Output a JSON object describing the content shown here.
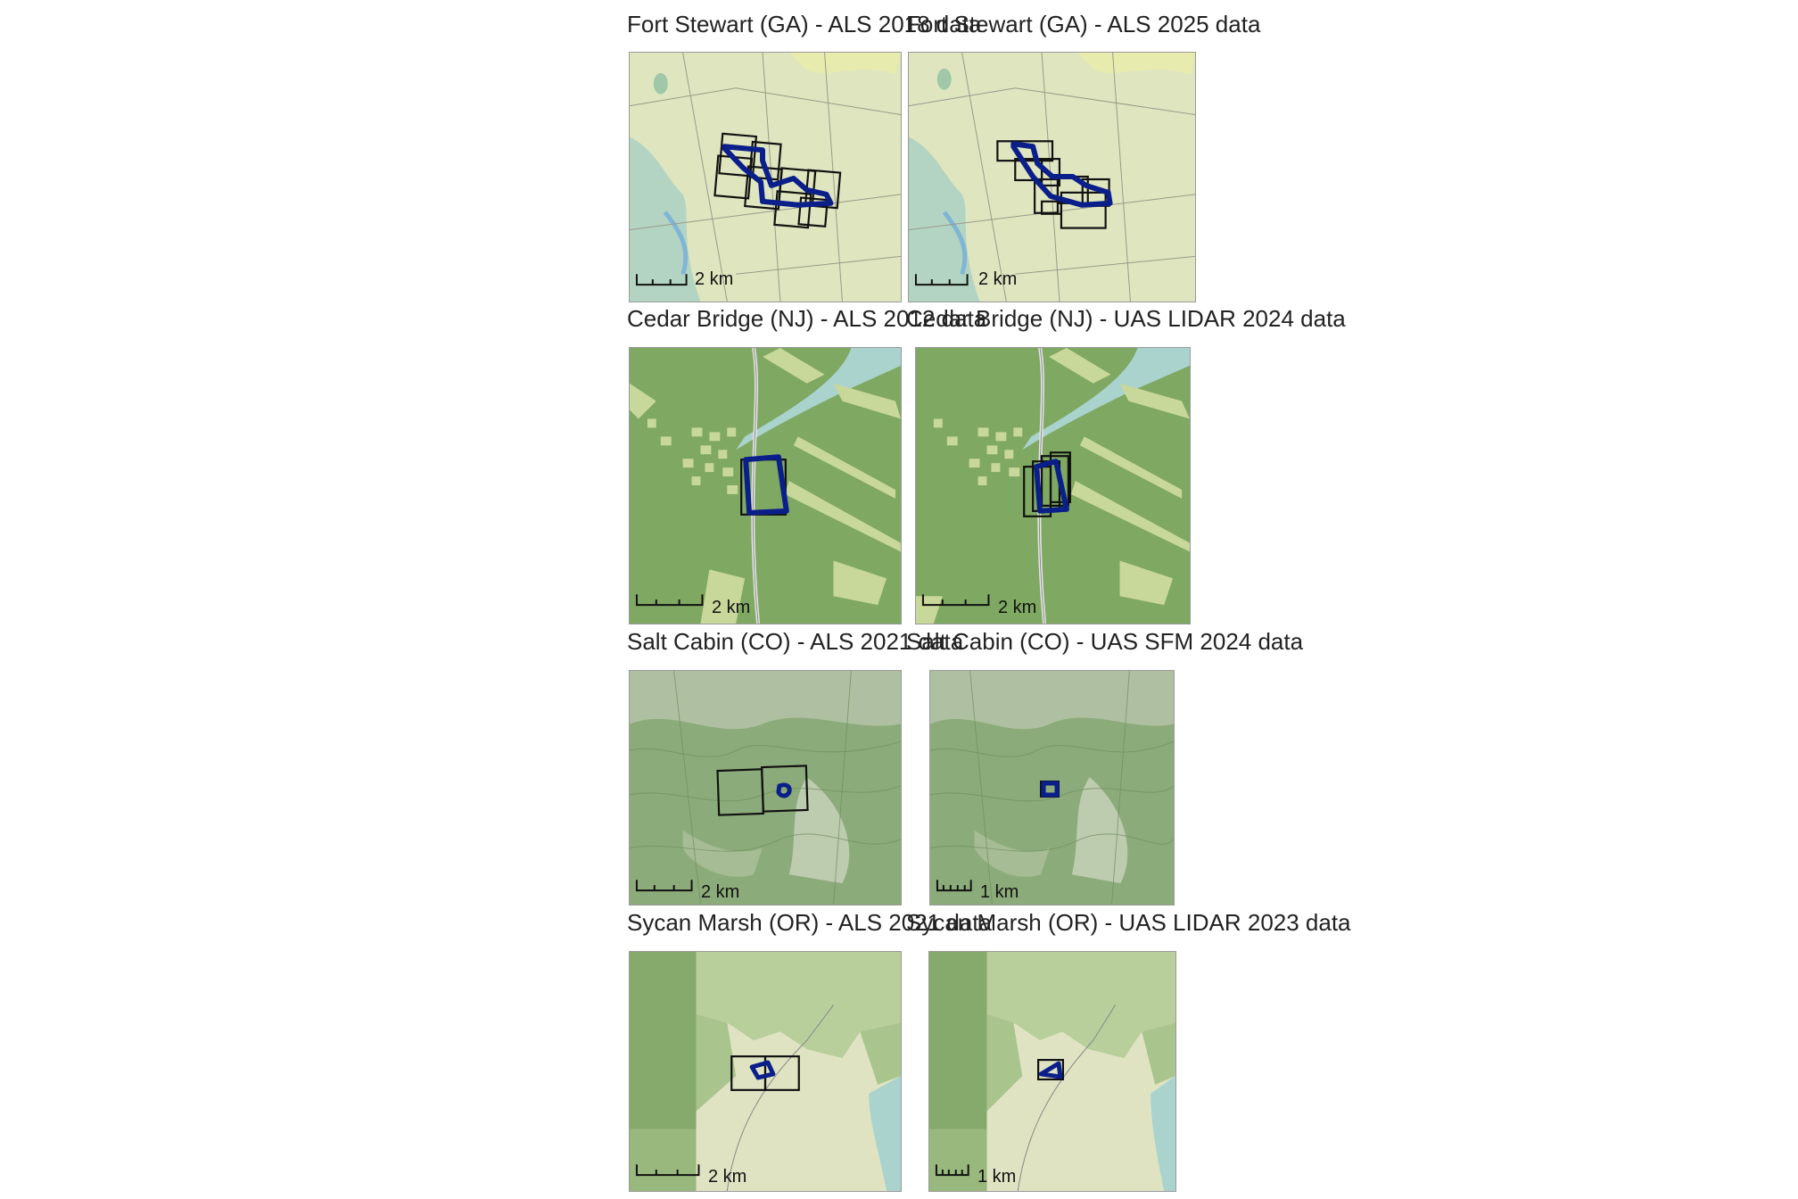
{
  "panels": [
    {
      "title": "Fort Stewart (GA) - ALS 2018 data",
      "scale": "2 km"
    },
    {
      "title": "Fort Stewart (GA) - ALS 2025 data",
      "scale": "2 km"
    },
    {
      "title": "Cedar Bridge (NJ) - ALS 2012 data",
      "scale": "2 km"
    },
    {
      "title": "Cedar Bridge (NJ) - UAS LIDAR 2024 data",
      "scale": "2 km"
    },
    {
      "title": "Salt Cabin (CO) - ALS 2021 data",
      "scale": "2 km"
    },
    {
      "title": "Salt Cabin (CO) - UAS SFM 2024 data",
      "scale": "1 km"
    },
    {
      "title": "Sycan Marsh (OR) - ALS 2021 data",
      "scale": "2 km"
    },
    {
      "title": "Sycan Marsh (OR) - UAS LIDAR 2023 data",
      "scale": "1 km"
    }
  ],
  "colors": {
    "boundary": "#0b1f8a",
    "tiles": "#111111"
  }
}
